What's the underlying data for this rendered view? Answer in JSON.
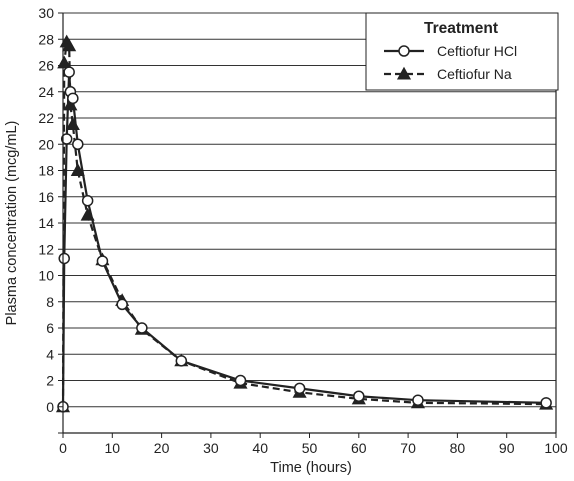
{
  "chart_data": {
    "type": "line",
    "title": "",
    "xlabel": "Time (hours)",
    "ylabel": "Plasma concentration (mcg/mL)",
    "xlim": [
      0,
      100
    ],
    "ylim": [
      -2,
      30
    ],
    "x_ticks": [
      0,
      10,
      20,
      30,
      40,
      50,
      60,
      70,
      80,
      90,
      100
    ],
    "y_ticks": [
      0,
      2,
      4,
      6,
      8,
      10,
      12,
      14,
      16,
      18,
      20,
      22,
      24,
      26,
      28,
      30
    ],
    "grid": "horizontal",
    "legend": {
      "title": "Treatment",
      "placement": "top-right"
    },
    "series": [
      {
        "name": "Ceftiofur HCl",
        "marker": "open-circle",
        "line_style": "solid",
        "color": "#222222",
        "x": [
          0,
          0.25,
          0.75,
          1.25,
          1.5,
          2,
          3,
          5,
          8,
          12,
          16,
          24,
          36,
          48,
          60,
          72,
          98
        ],
        "y": [
          0,
          11.3,
          20.4,
          25.5,
          24.0,
          23.5,
          20.0,
          15.7,
          11.1,
          7.8,
          6.0,
          3.5,
          2.0,
          1.4,
          0.8,
          0.5,
          0.3
        ]
      },
      {
        "name": "Ceftiofur Na",
        "marker": "filled-triangle",
        "line_style": "dashed",
        "color": "#222222",
        "x": [
          0,
          0.25,
          0.75,
          1.25,
          1.5,
          2,
          3,
          5,
          8,
          12,
          16,
          24,
          36,
          48,
          60,
          72,
          98
        ],
        "y": [
          0,
          26.2,
          27.8,
          27.5,
          23.0,
          21.5,
          18.0,
          14.6,
          11.2,
          8.1,
          5.9,
          3.5,
          1.8,
          1.1,
          0.6,
          0.3,
          0.2
        ]
      }
    ]
  }
}
